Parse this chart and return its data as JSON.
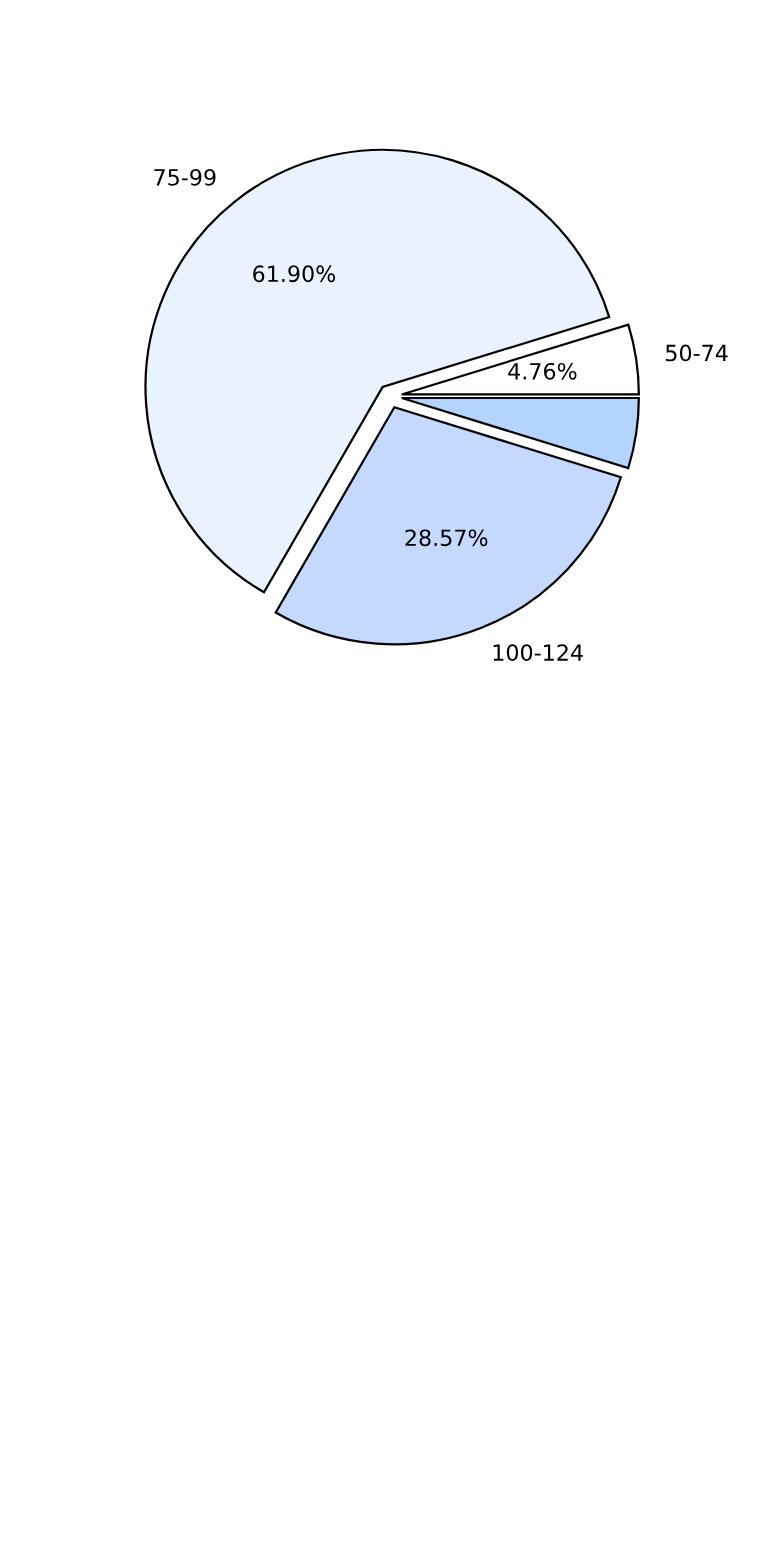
{
  "chart_data": {
    "type": "pie",
    "categories": [
      "50-74",
      "75-99",
      "100-124",
      null
    ],
    "values": [
      4.76,
      61.9,
      28.57,
      4.77
    ],
    "colors": [
      "#ffffff",
      "#eaf1ff",
      "#c5d9ff",
      "#b3d4ff"
    ],
    "value_labels": [
      "4.76%",
      "61.90%",
      "28.57%",
      null
    ],
    "legend": false
  }
}
